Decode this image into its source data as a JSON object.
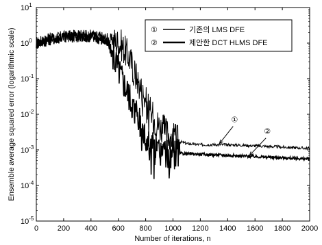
{
  "chart_data": {
    "type": "line",
    "xlabel": "Number of iterations, n",
    "ylabel": "Ensemble average squared error (logarithmic scale)",
    "xlim": [
      0,
      2000
    ],
    "ylim": [
      1e-05,
      10
    ],
    "yscale": "log",
    "xticks": [
      0,
      200,
      400,
      600,
      800,
      1000,
      1200,
      1400,
      1600,
      1800,
      2000
    ],
    "yticks": [
      {
        "value": 1e-05,
        "base": "10",
        "exp": "-5"
      },
      {
        "value": 0.0001,
        "base": "10",
        "exp": "-4"
      },
      {
        "value": 0.001,
        "base": "10",
        "exp": "-3"
      },
      {
        "value": 0.01,
        "base": "10",
        "exp": "-2"
      },
      {
        "value": 0.1,
        "base": "10",
        "exp": "-1"
      },
      {
        "value": 1,
        "base": "10",
        "exp": "0"
      },
      {
        "value": 10,
        "base": "10",
        "exp": "1"
      }
    ],
    "legend_position": "top-right",
    "series": [
      {
        "marker": "①",
        "name": "기존의 LMS DFE",
        "color": "#000000",
        "x": [
          0,
          100,
          200,
          300,
          400,
          500,
          560,
          620,
          680,
          720,
          760,
          800,
          840,
          880,
          920,
          960,
          1000,
          1050,
          1100,
          1200,
          1400,
          1600,
          1800,
          2000
        ],
        "y": [
          1.0,
          1.3,
          1.5,
          1.6,
          1.6,
          1.4,
          1.2,
          0.9,
          0.4,
          0.15,
          0.06,
          0.025,
          0.01,
          0.006,
          0.004,
          0.003,
          0.0022,
          0.0017,
          0.0015,
          0.0014,
          0.0014,
          0.0013,
          0.0012,
          0.0011
        ]
      },
      {
        "marker": "②",
        "name": "제안한 DCT HLMS DFE",
        "color": "#000000",
        "x": [
          0,
          100,
          200,
          300,
          400,
          500,
          540,
          580,
          620,
          660,
          700,
          740,
          780,
          820,
          860,
          900,
          950,
          1000,
          1100,
          1200,
          1400,
          1600,
          1800,
          2000
        ],
        "y": [
          1.0,
          1.3,
          1.5,
          1.6,
          1.6,
          1.2,
          0.7,
          0.3,
          0.12,
          0.05,
          0.02,
          0.008,
          0.003,
          0.0015,
          0.0011,
          0.0009,
          0.00085,
          0.0008,
          0.00078,
          0.00075,
          0.0007,
          0.00065,
          0.0006,
          0.00055
        ]
      }
    ],
    "annotations": [
      {
        "text": "①",
        "x": 1450,
        "y": 0.006,
        "arrow_to": [
          1340,
          0.0015
        ]
      },
      {
        "text": "②",
        "x": 1690,
        "y": 0.0028,
        "arrow_to": [
          1560,
          0.0007
        ]
      }
    ]
  }
}
